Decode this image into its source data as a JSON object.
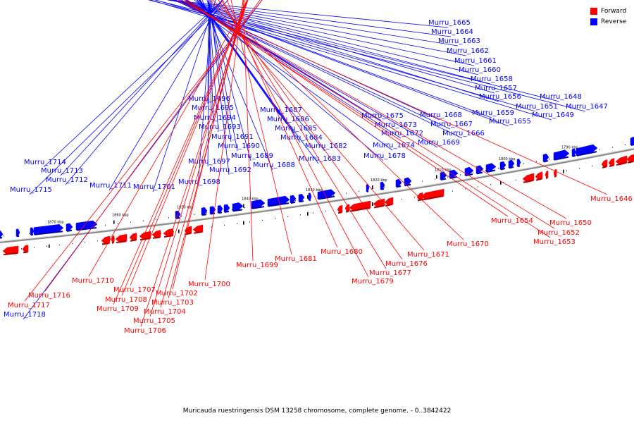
{
  "legend": [
    {
      "label": "Forward",
      "color": "#ff0000"
    },
    {
      "label": "Reverse",
      "color": "#0000ff"
    }
  ],
  "caption": "Muricauda ruestringensis DSM 13258 chromosome, complete genome. - 0..3842422",
  "colors": {
    "forward": "#ff0000",
    "reverse": "#0000ff",
    "backbone": "#888888"
  },
  "tick_labels": [
    "1870 kbp",
    "1860 kbp",
    "1850 kbp",
    "1840 kbp",
    "1830 kbp",
    "1820 kbp",
    "1810 kbp",
    "1800 kbp",
    "1790 kbp"
  ],
  "reverse_genes": [
    "Murru_1665",
    "Murru_1664",
    "Murru_1663",
    "Murru_1662",
    "Murru_1661",
    "Murru_1660",
    "Murru_1658",
    "Murru_1657",
    "Murru_1656",
    "Murru_1659",
    "Murru_1655",
    "Murru_1648",
    "Murru_1651",
    "Murru_1649",
    "Murru_1647",
    "Murru_1668",
    "Murru_1667",
    "Murru_1666",
    "Murru_1669",
    "Murru_1675",
    "Murru_1673",
    "Murru_1672",
    "Murru_1674",
    "Murru_1678",
    "Murru_1687",
    "Murru_1686",
    "Murru_1685",
    "Murru_1684",
    "Murru_1682",
    "Murru_1683",
    "Murru_1688",
    "Murru_1696",
    "Murru_1695",
    "Murru_1694",
    "Murru_1693",
    "Murru_1691",
    "Murru_1690",
    "Murru_1689",
    "Murru_1697",
    "Murru_1692",
    "Murru_1698",
    "Murru_1701",
    "Murru_1711",
    "Murru_1714",
    "Murru_1713",
    "Murru_1712",
    "Murru_1715",
    "Murru_1718"
  ],
  "forward_genes": [
    "Murru_1646",
    "Murru_1654",
    "Murru_1650",
    "Murru_1652",
    "Murru_1653",
    "Murru_1670",
    "Murru_1671",
    "Murru_1676",
    "Murru_1677",
    "Murru_1679",
    "Murru_1680",
    "Murru_1681",
    "Murru_1699",
    "Murru_1700",
    "Murru_1710",
    "Murru_1707",
    "Murru_1708",
    "Murru_1709",
    "Murru_1702",
    "Murru_1703",
    "Murru_1704",
    "Murru_1705",
    "Murru_1706",
    "Murru_1716",
    "Murru_1717"
  ]
}
